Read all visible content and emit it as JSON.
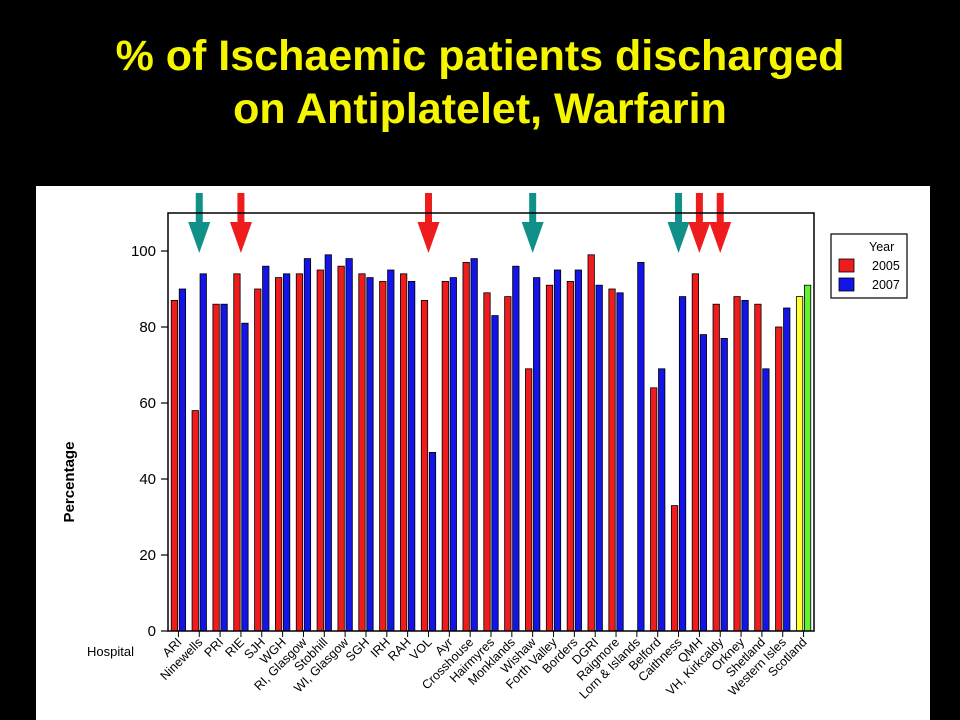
{
  "slide": {
    "title_line1": "% of Ischaemic patients discharged",
    "title_line2": "on Antiplatelet, Warfarin"
  },
  "colors": {
    "background": "#000000",
    "title": "#f5f500",
    "series_2005": "#ee1c1c",
    "series_2007": "#1414e6",
    "scotland_2005": "#ffff33",
    "scotland_2007": "#66ee33",
    "arrow_red": "#ee1c1c",
    "arrow_teal": "#11908a"
  },
  "chart_data": {
    "type": "bar",
    "title": "",
    "xlabel": "Hospital",
    "ylabel": "Percentage",
    "ylim": [
      0,
      110
    ],
    "yticks": [
      0,
      20,
      40,
      60,
      80,
      100
    ],
    "grid": false,
    "legend": {
      "title": "Year",
      "position": "top-right",
      "entries": [
        "2005",
        "2007"
      ]
    },
    "categories": [
      "ARI",
      "Ninewells",
      "PRI",
      "RIE",
      "SJH",
      "WGH",
      "RI, Glasgow",
      "Stobhill",
      "WI, Glasgow",
      "SGH",
      "IRH",
      "RAH",
      "VOL",
      "Ayr",
      "Crosshouse",
      "Hairmyres",
      "Monklands",
      "Wishaw",
      "Forth Valley",
      "Borders",
      "DGRI",
      "Raigmore",
      "Lorn & Islands",
      "Belford",
      "Caithness",
      "QMH",
      "VH, Kirkcaldy",
      "Orkney",
      "Shetland",
      "Western Isles",
      "Scotland"
    ],
    "series": [
      {
        "name": "2005",
        "values": [
          87,
          58,
          86,
          94,
          90,
          93,
          94,
          95,
          96,
          94,
          92,
          94,
          87,
          92,
          97,
          89,
          88,
          69,
          91,
          92,
          99,
          90,
          null,
          64,
          33,
          94,
          86,
          88,
          86,
          80,
          88
        ]
      },
      {
        "name": "2007",
        "values": [
          90,
          94,
          86,
          81,
          96,
          94,
          98,
          99,
          98,
          93,
          95,
          92,
          47,
          93,
          98,
          83,
          96,
          93,
          95,
          95,
          91,
          89,
          97,
          69,
          88,
          78,
          77,
          87,
          69,
          85,
          91
        ]
      }
    ],
    "arrows": {
      "teal": [
        "Ninewells",
        "Wishaw",
        "Caithness"
      ],
      "red": [
        "RIE",
        "VOL",
        "QMH",
        "VH, Kirkcaldy"
      ]
    }
  }
}
